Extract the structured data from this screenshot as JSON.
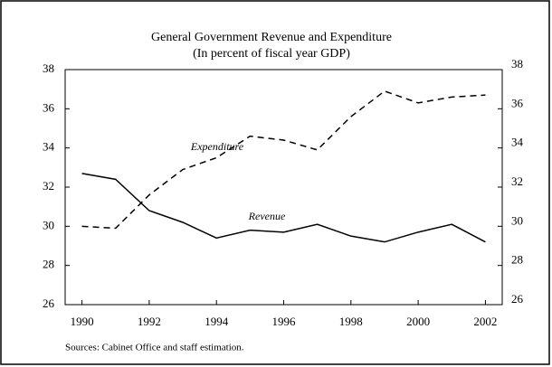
{
  "chart_data": {
    "type": "line",
    "title": "General Government Revenue and Expenditure",
    "subtitle": "(In percent of fiscal year GDP)",
    "x": [
      1990,
      1991,
      1992,
      1993,
      1994,
      1995,
      1996,
      1997,
      1998,
      1999,
      2000,
      2001,
      2002
    ],
    "series": [
      {
        "name": "Revenue",
        "color": "#000000",
        "line_style": "solid",
        "values": [
          32.7,
          32.4,
          30.8,
          30.2,
          29.4,
          29.8,
          29.7,
          30.1,
          29.5,
          29.2,
          29.7,
          30.1,
          29.2
        ]
      },
      {
        "name": "Expenditure",
        "color": "#000000",
        "line_style": "dashed",
        "values": [
          30.0,
          29.9,
          31.6,
          32.9,
          33.5,
          34.6,
          34.4,
          33.9,
          35.6,
          36.9,
          36.3,
          36.6,
          36.7
        ]
      }
    ],
    "xlim": [
      1989.5,
      2002.5
    ],
    "xticks": [
      1990,
      1992,
      1994,
      1996,
      1998,
      2000,
      2002
    ],
    "ylim": [
      26,
      38
    ],
    "yticks": [
      26,
      28,
      30,
      32,
      34,
      36,
      38
    ],
    "y2lim": [
      26,
      38
    ],
    "y2ticks": [
      26,
      28,
      30,
      32,
      34,
      36,
      38
    ],
    "grid": false,
    "source": "Sources: Cabinet Office and staff estimation."
  }
}
